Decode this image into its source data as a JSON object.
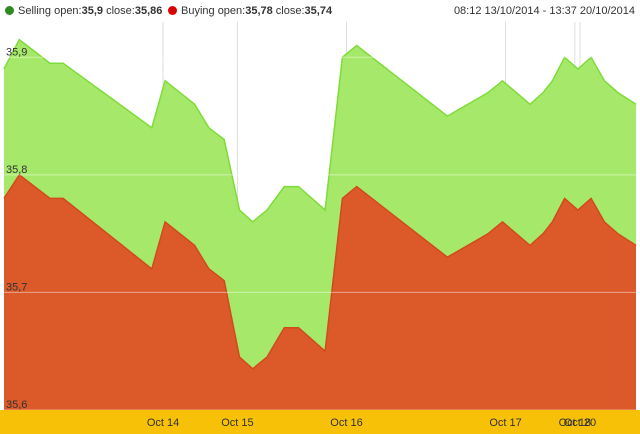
{
  "legend": {
    "selling": {
      "label": "Selling open:",
      "open": "35,9",
      "sep": " close:",
      "close": "35,86",
      "color": "#2e8b1f"
    },
    "buying": {
      "label": "Buying open:",
      "open": "35,78",
      "sep": " close:",
      "close": "35,74",
      "color": "#d80000"
    },
    "range": "08:12 13/10/2014 - 13:37 20/10/2014"
  },
  "colors": {
    "selling_fill": "#a6e86a",
    "selling_line": "#7fdc38",
    "buying_fill": "#dc5a2a",
    "buying_line": "#d24a1c",
    "axis_band": "#f6c107",
    "grid": "#dddddd"
  },
  "chart_data": {
    "type": "area",
    "title": "",
    "xlabel": "",
    "ylabel": "",
    "ylim": [
      35.6,
      35.93
    ],
    "y_ticks": [
      {
        "value": 35.9,
        "label": "35,9"
      },
      {
        "value": 35.8,
        "label": "35,8"
      },
      {
        "value": 35.7,
        "label": "35,7"
      },
      {
        "value": 35.6,
        "label": "35,6"
      }
    ],
    "x_ticks": [
      {
        "x": 15.6,
        "label": "Oct 14"
      },
      {
        "x": 22.9,
        "label": "Oct 15"
      },
      {
        "x": 33.6,
        "label": "Oct 16"
      },
      {
        "x": 49.2,
        "label": "Oct 17"
      },
      {
        "x": 56.0,
        "label": "Oct 18"
      },
      {
        "x": 56.5,
        "label": "Oct 20"
      }
    ],
    "x_range": [
      0,
      62
    ],
    "grid": true,
    "legend_position": "top",
    "series": [
      {
        "name": "Selling",
        "x": [
          0,
          1.5,
          4.5,
          5.8,
          14.5,
          15.8,
          18.7,
          20.1,
          21.6,
          23.1,
          24.4,
          25.8,
          27.5,
          28.9,
          31.5,
          33.2,
          34.6,
          43.5,
          47.5,
          48.9,
          51.6,
          52.9,
          53.8,
          55.0,
          56.3,
          57.6,
          58.9,
          60.2,
          62
        ],
        "values": [
          35.89,
          35.915,
          35.895,
          35.895,
          35.84,
          35.88,
          35.86,
          35.84,
          35.83,
          35.77,
          35.76,
          35.77,
          35.79,
          35.79,
          35.77,
          35.9,
          35.91,
          35.85,
          35.87,
          35.88,
          35.86,
          35.87,
          35.88,
          35.9,
          35.89,
          35.9,
          35.88,
          35.87,
          35.86
        ]
      },
      {
        "name": "Buying",
        "x": [
          0,
          1.5,
          4.5,
          5.8,
          14.5,
          15.8,
          18.7,
          20.1,
          21.6,
          23.1,
          24.4,
          25.8,
          27.5,
          28.9,
          31.5,
          33.2,
          34.6,
          43.5,
          47.5,
          48.9,
          51.6,
          52.9,
          53.8,
          55.0,
          56.3,
          57.6,
          58.9,
          60.2,
          62
        ],
        "values": [
          35.78,
          35.8,
          35.78,
          35.78,
          35.72,
          35.76,
          35.74,
          35.72,
          35.71,
          35.645,
          35.635,
          35.645,
          35.67,
          35.67,
          35.65,
          35.78,
          35.79,
          35.73,
          35.75,
          35.76,
          35.74,
          35.75,
          35.76,
          35.78,
          35.77,
          35.78,
          35.76,
          35.75,
          35.74
        ]
      }
    ]
  }
}
